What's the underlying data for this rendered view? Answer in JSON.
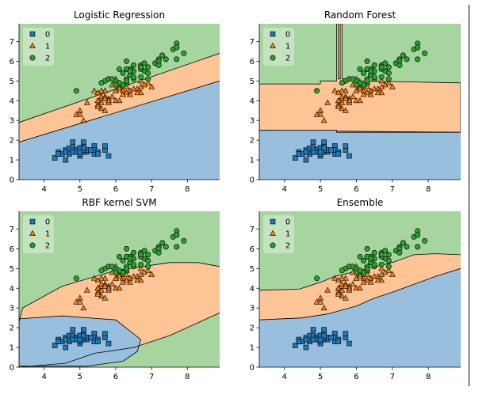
{
  "colors": {
    "class_0_region": "#98bfdd",
    "class_1_region": "#fdc595",
    "class_2_region": "#a6d5a0",
    "class_0_marker": "#1f77b4",
    "class_1_marker": "#ff7f0e",
    "class_2_marker": "#2ca02c",
    "boundary": "#000000"
  },
  "chart_data": [
    {
      "type": "scatter",
      "title": "Logistic Regression",
      "xlim": [
        3.3,
        8.9
      ],
      "ylim": [
        0,
        7.9
      ],
      "xticks": [
        4,
        5,
        6,
        7,
        8
      ],
      "yticks": [
        0,
        1,
        2,
        3,
        4,
        5,
        6,
        7
      ],
      "legend": {
        "placement": "top-left",
        "entries": [
          "0",
          "1",
          "2"
        ]
      },
      "boundaries": [
        {
          "x": [
            3.3,
            8.9
          ],
          "y": [
            1.9,
            5.0
          ]
        },
        {
          "x": [
            3.3,
            8.9
          ],
          "y": [
            2.9,
            6.4
          ]
        }
      ]
    },
    {
      "type": "scatter",
      "title": "Random Forest",
      "xlim": [
        3.3,
        8.9
      ],
      "ylim": [
        0,
        7.9
      ],
      "xticks": [
        4,
        5,
        6,
        7,
        8
      ],
      "yticks": [
        0,
        1,
        2,
        3,
        4,
        5,
        6,
        7
      ],
      "legend": {
        "placement": "top-left",
        "entries": [
          "0",
          "1",
          "2"
        ]
      },
      "boundaries": [
        {
          "x": [
            3.3,
            5.45,
            5.45,
            8.9
          ],
          "y": [
            2.5,
            2.5,
            2.4,
            2.4
          ]
        },
        {
          "x": [
            3.3,
            3.3,
            5.0,
            5.0,
            5.45,
            5.45,
            5.5,
            5.5,
            5.55,
            5.55,
            5.6,
            5.6,
            6.1,
            6.1,
            8.9,
            8.9,
            3.3
          ],
          "y": [
            4.45,
            4.85,
            4.85,
            5.0,
            5.0,
            7.9,
            7.9,
            5.1,
            5.1,
            7.9,
            7.9,
            5.1,
            5.1,
            5.0,
            4.9,
            2.4,
            2.5
          ]
        }
      ]
    },
    {
      "type": "scatter",
      "title": "RBF kernel SVM",
      "xlim": [
        3.3,
        8.9
      ],
      "ylim": [
        0,
        7.9
      ],
      "xticks": [
        4,
        5,
        6,
        7,
        8
      ],
      "yticks": [
        0,
        1,
        2,
        3,
        4,
        5,
        6,
        7
      ],
      "legend": {
        "placement": "top-left",
        "entries": [
          "0",
          "1",
          "2"
        ]
      },
      "boundaries": [
        {
          "x": [
            3.3,
            4.5,
            6.0,
            6.7,
            6.6,
            6.2,
            5.2,
            4.0,
            3.3
          ],
          "y": [
            2.45,
            2.6,
            2.4,
            1.4,
            0.8,
            0.3,
            0.05,
            0.05,
            0.05
          ]
        },
        {
          "x": [
            3.3,
            3.4,
            4.5,
            6.0,
            7.5,
            8.3,
            8.9
          ],
          "y": [
            2.3,
            3.0,
            4.1,
            4.9,
            5.3,
            5.3,
            5.1
          ]
        },
        {
          "x": [
            8.9,
            7.5,
            6.5,
            5.4,
            4.6,
            3.3
          ],
          "y": [
            2.75,
            1.6,
            1.0,
            0.7,
            0.2,
            0.0
          ]
        }
      ]
    },
    {
      "type": "scatter",
      "title": "Ensemble",
      "xlim": [
        3.3,
        8.9
      ],
      "ylim": [
        0,
        7.9
      ],
      "xticks": [
        4,
        5,
        6,
        7,
        8
      ],
      "yticks": [
        0,
        1,
        2,
        3,
        4,
        5,
        6,
        7
      ],
      "legend": {
        "placement": "top-left",
        "entries": [
          "0",
          "1",
          "2"
        ]
      },
      "boundaries": [
        {
          "x": [
            3.3,
            4.5,
            5.2,
            6.0,
            6.5,
            7.0,
            7.6,
            8.2,
            8.9
          ],
          "y": [
            2.4,
            2.5,
            2.7,
            3.1,
            3.5,
            3.8,
            4.2,
            4.6,
            5.0
          ]
        },
        {
          "x": [
            3.3,
            4.4,
            5.0,
            5.4,
            6.2,
            7.0,
            7.6,
            8.2,
            8.9
          ],
          "y": [
            3.9,
            3.95,
            4.3,
            4.6,
            4.95,
            5.3,
            5.7,
            5.75,
            5.7
          ]
        }
      ]
    }
  ],
  "points": {
    "class_0": [
      [
        5.1,
        1.4
      ],
      [
        4.9,
        1.4
      ],
      [
        4.7,
        1.3
      ],
      [
        4.6,
        1.5
      ],
      [
        5.0,
        1.4
      ],
      [
        5.4,
        1.7
      ],
      [
        4.6,
        1.4
      ],
      [
        5.0,
        1.5
      ],
      [
        4.4,
        1.4
      ],
      [
        4.9,
        1.5
      ],
      [
        5.4,
        1.5
      ],
      [
        4.8,
        1.6
      ],
      [
        4.8,
        1.4
      ],
      [
        4.3,
        1.1
      ],
      [
        5.8,
        1.2
      ],
      [
        5.7,
        1.5
      ],
      [
        5.4,
        1.3
      ],
      [
        5.1,
        1.4
      ],
      [
        5.7,
        1.7
      ],
      [
        5.1,
        1.5
      ],
      [
        5.4,
        1.7
      ],
      [
        5.1,
        1.5
      ],
      [
        4.6,
        1.0
      ],
      [
        5.1,
        1.7
      ],
      [
        4.8,
        1.9
      ],
      [
        5.0,
        1.6
      ],
      [
        5.0,
        1.6
      ],
      [
        5.2,
        1.5
      ],
      [
        5.2,
        1.4
      ],
      [
        4.7,
        1.6
      ],
      [
        4.8,
        1.6
      ],
      [
        5.4,
        1.5
      ],
      [
        5.2,
        1.5
      ],
      [
        5.5,
        1.4
      ],
      [
        4.9,
        1.5
      ],
      [
        5.0,
        1.2
      ],
      [
        5.5,
        1.3
      ],
      [
        4.9,
        1.4
      ],
      [
        4.4,
        1.3
      ],
      [
        5.1,
        1.5
      ],
      [
        5.0,
        1.3
      ],
      [
        4.5,
        1.3
      ],
      [
        4.4,
        1.3
      ],
      [
        5.0,
        1.6
      ],
      [
        5.1,
        1.9
      ],
      [
        4.8,
        1.4
      ],
      [
        5.1,
        1.6
      ],
      [
        4.6,
        1.4
      ],
      [
        5.3,
        1.5
      ],
      [
        5.0,
        1.4
      ]
    ],
    "class_1": [
      [
        7.0,
        4.7
      ],
      [
        6.4,
        4.5
      ],
      [
        6.9,
        4.9
      ],
      [
        5.5,
        4.0
      ],
      [
        6.5,
        4.6
      ],
      [
        5.7,
        4.5
      ],
      [
        6.3,
        4.7
      ],
      [
        4.9,
        3.3
      ],
      [
        6.6,
        4.6
      ],
      [
        5.2,
        3.9
      ],
      [
        5.0,
        3.5
      ],
      [
        5.9,
        4.2
      ],
      [
        6.0,
        4.0
      ],
      [
        6.1,
        4.7
      ],
      [
        5.6,
        3.6
      ],
      [
        6.7,
        4.4
      ],
      [
        5.6,
        4.5
      ],
      [
        5.8,
        4.1
      ],
      [
        6.2,
        4.5
      ],
      [
        5.6,
        3.9
      ],
      [
        5.9,
        4.8
      ],
      [
        6.1,
        4.0
      ],
      [
        6.3,
        4.9
      ],
      [
        6.1,
        4.7
      ],
      [
        6.4,
        4.3
      ],
      [
        6.6,
        4.4
      ],
      [
        6.8,
        4.8
      ],
      [
        6.7,
        5.0
      ],
      [
        6.0,
        4.5
      ],
      [
        5.7,
        3.5
      ],
      [
        5.5,
        3.8
      ],
      [
        5.5,
        3.7
      ],
      [
        5.8,
        3.9
      ],
      [
        6.0,
        5.1
      ],
      [
        5.4,
        4.5
      ],
      [
        6.0,
        4.5
      ],
      [
        6.7,
        4.7
      ],
      [
        6.3,
        4.4
      ],
      [
        5.6,
        4.1
      ],
      [
        5.5,
        4.0
      ],
      [
        5.5,
        4.4
      ],
      [
        6.1,
        4.6
      ],
      [
        5.8,
        4.0
      ],
      [
        5.0,
        3.3
      ],
      [
        5.6,
        4.2
      ],
      [
        5.7,
        4.2
      ],
      [
        5.7,
        4.2
      ],
      [
        6.2,
        4.3
      ],
      [
        5.1,
        3.0
      ],
      [
        5.7,
        4.1
      ]
    ],
    "class_2": [
      [
        6.3,
        6.0
      ],
      [
        5.8,
        5.1
      ],
      [
        7.1,
        5.9
      ],
      [
        6.3,
        5.6
      ],
      [
        6.5,
        5.8
      ],
      [
        7.6,
        6.6
      ],
      [
        4.9,
        4.5
      ],
      [
        7.3,
        6.3
      ],
      [
        6.7,
        5.8
      ],
      [
        7.2,
        6.1
      ],
      [
        6.5,
        5.1
      ],
      [
        6.4,
        5.3
      ],
      [
        6.8,
        5.5
      ],
      [
        5.7,
        5.0
      ],
      [
        5.8,
        5.1
      ],
      [
        6.4,
        5.3
      ],
      [
        6.5,
        5.5
      ],
      [
        7.7,
        6.7
      ],
      [
        7.7,
        6.9
      ],
      [
        6.0,
        5.0
      ],
      [
        6.9,
        5.7
      ],
      [
        5.6,
        4.9
      ],
      [
        7.7,
        6.7
      ],
      [
        6.3,
        4.9
      ],
      [
        6.7,
        5.7
      ],
      [
        7.2,
        6.0
      ],
      [
        6.2,
        4.8
      ],
      [
        6.1,
        4.9
      ],
      [
        6.4,
        5.6
      ],
      [
        7.2,
        5.8
      ],
      [
        7.4,
        6.1
      ],
      [
        7.9,
        6.4
      ],
      [
        6.4,
        5.6
      ],
      [
        6.3,
        5.1
      ],
      [
        6.1,
        5.6
      ],
      [
        7.7,
        6.1
      ],
      [
        6.3,
        5.6
      ],
      [
        6.4,
        5.5
      ],
      [
        6.0,
        4.8
      ],
      [
        6.9,
        5.4
      ],
      [
        6.7,
        5.6
      ],
      [
        6.9,
        5.1
      ],
      [
        5.8,
        5.1
      ],
      [
        6.8,
        5.9
      ],
      [
        6.7,
        5.7
      ],
      [
        6.7,
        5.2
      ],
      [
        6.3,
        5.0
      ],
      [
        6.5,
        5.2
      ],
      [
        6.2,
        5.4
      ],
      [
        5.9,
        5.1
      ]
    ]
  }
}
